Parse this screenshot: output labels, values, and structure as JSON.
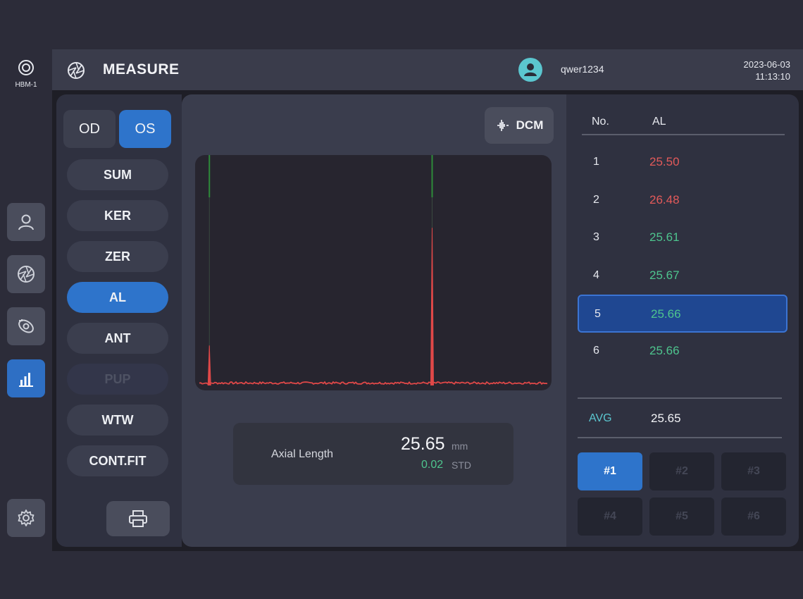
{
  "brand": {
    "name": "HBM-1",
    "logo_icon": "concentric-circle-icon"
  },
  "header": {
    "title": "MEASURE",
    "title_icon": "aperture-icon",
    "username": "qwer1234",
    "date": "2023-06-03",
    "time": "11:13:10",
    "avatar_color": "#5bc6cf"
  },
  "rail": {
    "items": [
      {
        "icon": "person-icon",
        "active": false
      },
      {
        "icon": "aperture-icon",
        "active": false
      },
      {
        "icon": "eye-scan-icon",
        "active": false
      },
      {
        "icon": "bar-chart-icon",
        "active": true
      },
      {
        "icon": "gear-icon",
        "active": false
      }
    ]
  },
  "eye": {
    "od": "OD",
    "os": "OS",
    "selected": "OS"
  },
  "modes": [
    {
      "label": "SUM",
      "state": "normal"
    },
    {
      "label": "KER",
      "state": "normal"
    },
    {
      "label": "ZER",
      "state": "normal"
    },
    {
      "label": "AL",
      "state": "active"
    },
    {
      "label": "ANT",
      "state": "normal"
    },
    {
      "label": "PUP",
      "state": "disabled"
    },
    {
      "label": "WTW",
      "state": "normal"
    },
    {
      "label": "CONT.FIT",
      "state": "normal"
    }
  ],
  "print_icon": "printer-icon",
  "dcm": {
    "label": "DCM",
    "icon": "waveform-icon"
  },
  "scan": {
    "signal_color": "#e04848",
    "marker_color": "#2e8a3a",
    "peaks": [
      {
        "position": 0.04,
        "level": 0.17
      },
      {
        "position": 0.665,
        "level": 0.67
      }
    ],
    "markers": [
      0.04,
      0.665
    ]
  },
  "result": {
    "label": "Axial Length",
    "value": "25.65",
    "unit": "mm",
    "std_value": "0.02",
    "std_label": "STD"
  },
  "table": {
    "headers": {
      "no": "No.",
      "al": "AL"
    },
    "rows": [
      {
        "no": "1",
        "al": "25.50",
        "status": "bad"
      },
      {
        "no": "2",
        "al": "26.48",
        "status": "bad"
      },
      {
        "no": "3",
        "al": "25.61",
        "status": "good"
      },
      {
        "no": "4",
        "al": "25.67",
        "status": "good"
      },
      {
        "no": "5",
        "al": "25.66",
        "status": "good",
        "selected": true
      },
      {
        "no": "6",
        "al": "25.66",
        "status": "good"
      }
    ],
    "avg_label": "AVG",
    "avg_value": "25.65"
  },
  "slots": [
    {
      "label": "#1",
      "active": true
    },
    {
      "label": "#2",
      "active": false
    },
    {
      "label": "#3",
      "active": false
    },
    {
      "label": "#4",
      "active": false
    },
    {
      "label": "#5",
      "active": false
    },
    {
      "label": "#6",
      "active": false
    }
  ]
}
